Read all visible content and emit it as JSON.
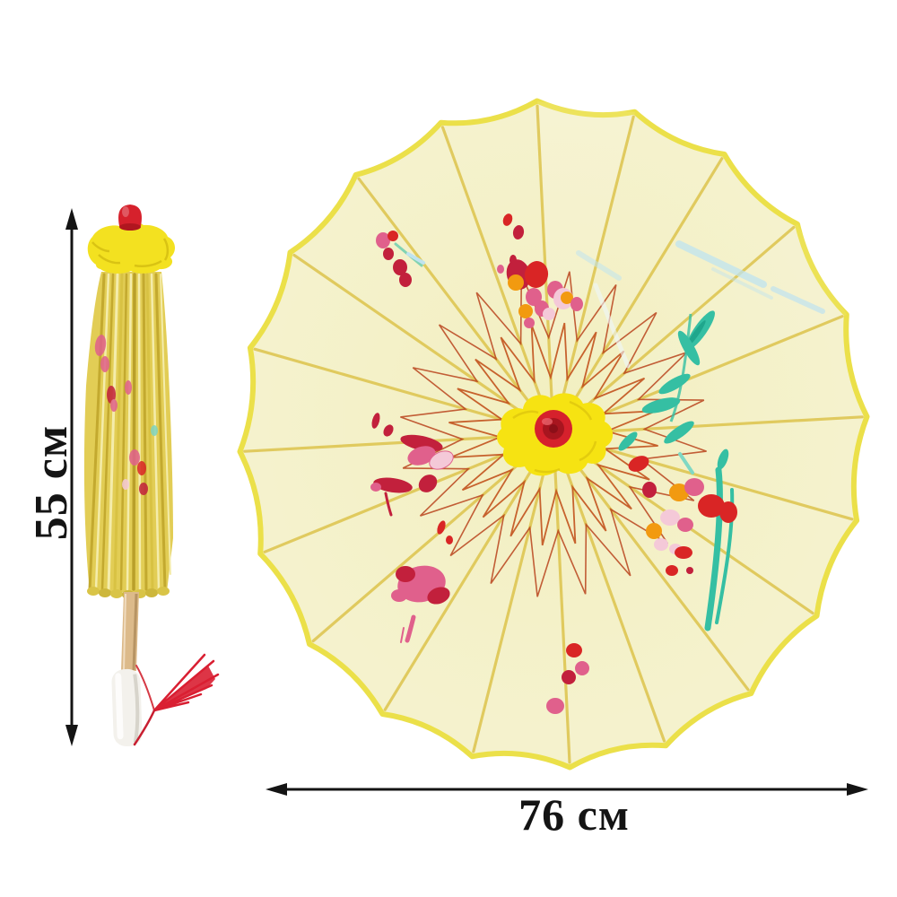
{
  "annotations": {
    "height_label": "55 см",
    "diameter_label": "76 см"
  },
  "colors": {
    "background": "#ffffff",
    "dimension_text": "#141414",
    "arrow": "#141414",
    "canopy": "#f5f2cd",
    "canopy_center": "#f2efc0",
    "canopy_trim": "#ebe049",
    "rib": "#ddc44c",
    "string_web": "#c2521d",
    "hub": "#f6e312",
    "hub_shadow": "#d8c00c",
    "knob": "#d6212c",
    "knob_dark": "#a8151f",
    "paint_red": "#d92525",
    "paint_crimson": "#c2203c",
    "paint_orange": "#f29a10",
    "paint_pink": "#e0608c",
    "paint_pale_pink": "#f4c9d8",
    "paint_teal": "#35bfa3",
    "paint_blue": "#bfe3ef",
    "closed_body": "#e2cd55",
    "pleat_dark": "#c3a92f",
    "pleat_light": "#f4ecab",
    "ruffle": "#f3e120",
    "ruffle_shadow": "#cdb70e",
    "cap_red": "#d6212c",
    "shaft": "#dcba8a",
    "shaft_shadow": "#b79464",
    "handle": "#f3f1ec",
    "handle_shadow": "#d7d4cb",
    "tassel": "#d91f32"
  }
}
